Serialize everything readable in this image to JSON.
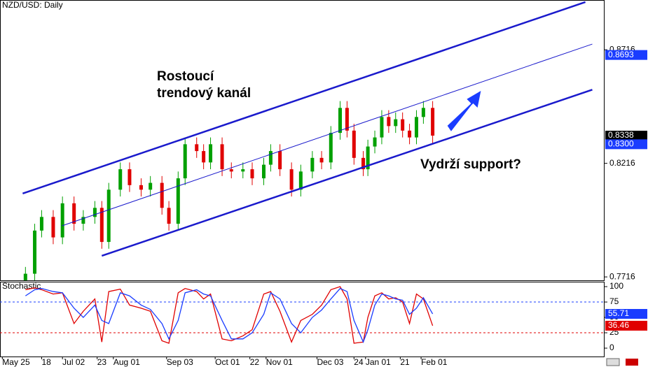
{
  "chart_data": [
    {
      "type": "candlestick",
      "title": "NZD/USD: Daily",
      "annotations": [
        "Rostoucí",
        "trendový kanál",
        "Vydrží support?"
      ],
      "x": [
        10,
        14,
        17,
        22,
        26,
        31,
        35,
        40,
        43,
        46,
        51,
        55,
        60,
        64,
        69,
        72,
        76,
        79,
        84,
        87,
        90,
        95,
        99,
        104,
        108,
        113,
        116,
        120,
        125,
        129,
        134,
        138,
        142,
        146,
        149,
        152,
        156,
        158,
        161,
        164,
        167,
        170,
        173,
        176,
        179,
        182,
        186
      ],
      "open": [
        0.77,
        0.773,
        0.792,
        0.798,
        0.789,
        0.804,
        0.795,
        0.798,
        0.802,
        0.787,
        0.81,
        0.819,
        0.812,
        0.81,
        0.813,
        0.802,
        0.795,
        0.815,
        0.83,
        0.827,
        0.822,
        0.83,
        0.819,
        0.818,
        0.819,
        0.815,
        0.821,
        0.827,
        0.819,
        0.81,
        0.818,
        0.824,
        0.822,
        0.835,
        0.846,
        0.836,
        0.824,
        0.819,
        0.829,
        0.833,
        0.842,
        0.838,
        0.841,
        0.836,
        0.833,
        0.842,
        0.846
      ],
      "high": [
        0.776,
        0.795,
        0.801,
        0.801,
        0.807,
        0.807,
        0.801,
        0.805,
        0.805,
        0.813,
        0.822,
        0.822,
        0.815,
        0.816,
        0.816,
        0.805,
        0.818,
        0.833,
        0.833,
        0.83,
        0.833,
        0.833,
        0.822,
        0.822,
        0.822,
        0.824,
        0.83,
        0.83,
        0.822,
        0.821,
        0.827,
        0.827,
        0.838,
        0.849,
        0.849,
        0.839,
        0.827,
        0.832,
        0.836,
        0.845,
        0.845,
        0.844,
        0.844,
        0.839,
        0.845,
        0.849,
        0.849
      ],
      "low": [
        0.767,
        0.77,
        0.789,
        0.786,
        0.786,
        0.792,
        0.792,
        0.795,
        0.784,
        0.784,
        0.807,
        0.809,
        0.807,
        0.807,
        0.799,
        0.792,
        0.792,
        0.812,
        0.824,
        0.819,
        0.819,
        0.816,
        0.815,
        0.815,
        0.812,
        0.812,
        0.818,
        0.816,
        0.807,
        0.807,
        0.815,
        0.819,
        0.819,
        0.832,
        0.833,
        0.821,
        0.816,
        0.816,
        0.826,
        0.83,
        0.835,
        0.835,
        0.833,
        0.83,
        0.83,
        0.839,
        0.83
      ],
      "close": [
        0.773,
        0.792,
        0.798,
        0.789,
        0.804,
        0.795,
        0.798,
        0.802,
        0.787,
        0.81,
        0.819,
        0.812,
        0.81,
        0.813,
        0.802,
        0.795,
        0.815,
        0.83,
        0.827,
        0.822,
        0.83,
        0.819,
        0.818,
        0.819,
        0.815,
        0.821,
        0.827,
        0.819,
        0.81,
        0.818,
        0.824,
        0.822,
        0.835,
        0.846,
        0.836,
        0.824,
        0.819,
        0.829,
        0.833,
        0.842,
        0.838,
        0.841,
        0.836,
        0.833,
        0.842,
        0.846,
        0.8338
      ],
      "up_color": "#00a000",
      "down_color": "#e00000",
      "xlim": [
        -1,
        260
      ],
      "ylim": [
        0.7701,
        0.8935
      ],
      "xticks": [
        {
          "value": 0,
          "label": "May 25"
        },
        {
          "value": 17,
          "label": "18"
        },
        {
          "value": 26,
          "label": "Jul 02"
        },
        {
          "value": 41,
          "label": "23"
        },
        {
          "value": 48,
          "label": "Aug 01"
        },
        {
          "value": 71,
          "label": "Sep 03"
        },
        {
          "value": 92,
          "label": "Oct 01"
        },
        {
          "value": 107,
          "label": "22"
        },
        {
          "value": 114,
          "label": "Nov 01"
        },
        {
          "value": 136,
          "label": "Dec 03"
        },
        {
          "value": 152,
          "label": "24"
        },
        {
          "value": 157,
          "label": "Jan 01"
        },
        {
          "value": 172,
          "label": "21"
        },
        {
          "value": 181,
          "label": "Feb 01"
        }
      ],
      "yticks": [
        0.8716,
        0.8216,
        0.7716
      ],
      "lines": [
        {
          "x": [
            8.8,
            252
          ],
          "y": [
            0.8083,
            0.8926
          ],
          "color": "#1a1acc",
          "thick": true
        },
        {
          "x": [
            25.8,
            255
          ],
          "y": [
            0.7941,
            0.8741
          ],
          "color": "#1a1acc",
          "thick": false
        },
        {
          "x": [
            43,
            255
          ],
          "y": [
            0.7809,
            0.854
          ],
          "color": "#1a1acc",
          "thick": true
        }
      ],
      "markers": [
        {
          "value": 0.8693,
          "color": "#1a3cff"
        },
        {
          "value": 0.8338,
          "color": "#000000"
        },
        {
          "value": 0.83,
          "label": "0.8300",
          "color": "#1a3cff"
        }
      ]
    },
    {
      "type": "line",
      "title": "Stochastic",
      "x": [
        10,
        14,
        17,
        22,
        26,
        31,
        35,
        40,
        43,
        46,
        51,
        55,
        60,
        64,
        69,
        72,
        76,
        79,
        84,
        87,
        90,
        95,
        99,
        104,
        108,
        113,
        116,
        120,
        125,
        129,
        134,
        138,
        142,
        146,
        149,
        152,
        156,
        158,
        161,
        164,
        167,
        170,
        173,
        176,
        179,
        182,
        186
      ],
      "series": [
        {
          "color": "#e00000",
          "values": [
            95,
            98,
            95,
            88,
            90,
            40,
            60,
            80,
            10,
            92,
            96,
            70,
            65,
            60,
            12,
            8,
            90,
            97,
            92,
            80,
            88,
            15,
            12,
            20,
            30,
            88,
            92,
            60,
            10,
            45,
            55,
            70,
            95,
            100,
            80,
            8,
            10,
            50,
            85,
            90,
            80,
            82,
            75,
            40,
            88,
            80,
            36.46
          ]
        },
        {
          "color": "#1a3cff",
          "values": [
            85,
            95,
            97,
            92,
            90,
            65,
            50,
            70,
            45,
            40,
            90,
            85,
            70,
            63,
            40,
            15,
            45,
            90,
            95,
            88,
            85,
            45,
            15,
            15,
            25,
            55,
            90,
            80,
            40,
            25,
            50,
            62,
            80,
            97,
            92,
            45,
            10,
            30,
            70,
            88,
            85,
            80,
            78,
            55,
            65,
            82,
            55.71
          ]
        }
      ],
      "xlim": [
        -1,
        260
      ],
      "ylim": [
        -13.6,
        108
      ],
      "yticks": [
        100,
        75,
        50,
        25,
        0
      ],
      "levels": [
        {
          "value": 75,
          "color": "#1a3cff"
        },
        {
          "value": 25,
          "color": "#e00000"
        }
      ],
      "markers": [
        {
          "value": 55.71,
          "color": "#1a3cff"
        },
        {
          "value": 36.46,
          "color": "#e00000"
        }
      ]
    }
  ]
}
